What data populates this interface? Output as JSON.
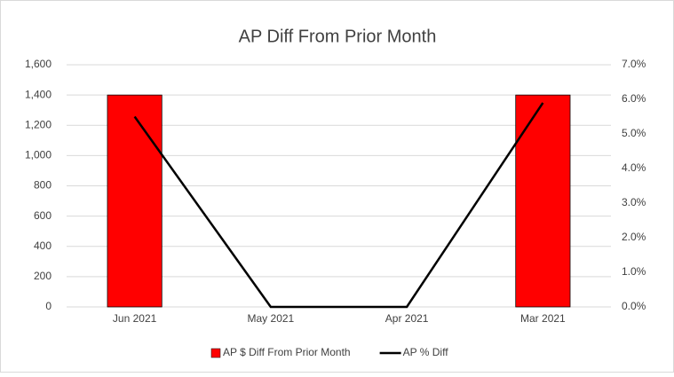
{
  "chart_data": {
    "type": "bar",
    "title": "AP Diff From Prior Month",
    "categories": [
      "Jun 2021",
      "May 2021",
      "Apr 2021",
      "Mar 2021"
    ],
    "series": [
      {
        "name": "AP $ Diff From Prior Month",
        "type": "bar",
        "color": "#ff0000",
        "values": [
          1400,
          0,
          0,
          1400
        ]
      },
      {
        "name": "AP % Diff",
        "type": "line",
        "axis": "y2",
        "color": "#000000",
        "values": [
          5.5,
          0,
          0,
          5.9
        ]
      }
    ],
    "ylim": [
      0,
      1600
    ],
    "yticks": [
      0,
      200,
      400,
      600,
      800,
      {
        "value": 1000,
        "label": "1,000"
      },
      {
        "value": 1200,
        "label": "1,200"
      },
      {
        "value": 1400,
        "label": "1,400"
      },
      {
        "value": 1600,
        "label": "1,600"
      }
    ],
    "y2lim": [
      0,
      7
    ],
    "y2ticks": [
      {
        "value": 0,
        "label": "0.0%"
      },
      {
        "value": 1,
        "label": "1.0%"
      },
      {
        "value": 2,
        "label": "2.0%"
      },
      {
        "value": 3,
        "label": "3.0%"
      },
      {
        "value": 4,
        "label": "4.0%"
      },
      {
        "value": 5,
        "label": "5.0%"
      },
      {
        "value": 6,
        "label": "6.0%"
      },
      {
        "value": 7,
        "label": "7.0%"
      }
    ],
    "grid": true,
    "legend": "bottom"
  }
}
